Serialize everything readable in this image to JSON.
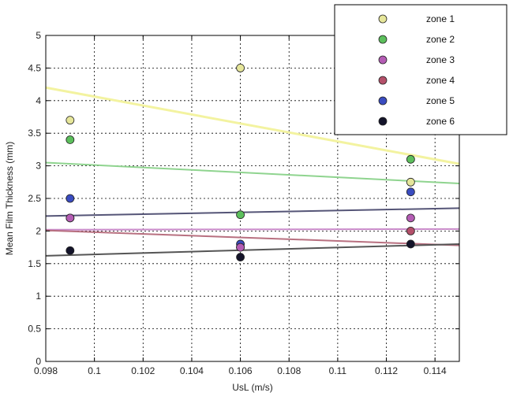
{
  "chart_data": {
    "type": "scatter",
    "title": "",
    "xlabel": "UsL (m/s)",
    "ylabel": "Mean Film Thickness (mm)",
    "xlim": [
      0.098,
      0.115
    ],
    "ylim": [
      0,
      5
    ],
    "xticks": [
      0.098,
      0.1,
      0.102,
      0.104,
      0.106,
      0.108,
      0.11,
      0.112,
      0.114
    ],
    "xtick_labels": [
      "0.098",
      "0.1",
      "0.102",
      "0.104",
      "0.106",
      "0.108",
      "0.11",
      "0.112",
      "0.114"
    ],
    "yticks": [
      0,
      0.5,
      1,
      1.5,
      2,
      2.5,
      3,
      3.5,
      4,
      4.5,
      5
    ],
    "ytick_labels": [
      "0",
      "0.5",
      "1",
      "1.5",
      "2",
      "2.5",
      "3",
      "3.5",
      "4",
      "4.5",
      "5"
    ],
    "grid": true,
    "legend_position": "top-right",
    "x": [
      0.099,
      0.106,
      0.113
    ],
    "series": [
      {
        "name": "zone 1",
        "color": "#e6e69a",
        "values": [
          3.7,
          4.5,
          2.75
        ],
        "trend": [
          4.2,
          3.03
        ],
        "trend_color": "#f3f3a0"
      },
      {
        "name": "zone 2",
        "color": "#5cbf5c",
        "values": [
          3.4,
          2.25,
          3.1
        ],
        "trend": [
          3.05,
          2.73
        ],
        "trend_color": "#8fd48f"
      },
      {
        "name": "zone 3",
        "color": "#b45cb4",
        "values": [
          2.2,
          1.75,
          2.2
        ],
        "trend": [
          2.02,
          2.03
        ],
        "trend_color": "#c98ac9"
      },
      {
        "name": "zone 4",
        "color": "#b4506a",
        "values": [
          2.2,
          1.75,
          2.0
        ],
        "trend": [
          2.01,
          1.78
        ],
        "trend_color": "#b87080"
      },
      {
        "name": "zone 5",
        "color": "#3a4cc0",
        "values": [
          2.5,
          1.8,
          2.6
        ],
        "trend": [
          2.23,
          2.35
        ],
        "trend_color": "#555577"
      },
      {
        "name": "zone 6",
        "color": "#14142a",
        "values": [
          1.7,
          1.6,
          1.8
        ],
        "trend": [
          1.62,
          1.8
        ],
        "trend_color": "#555555"
      }
    ]
  }
}
